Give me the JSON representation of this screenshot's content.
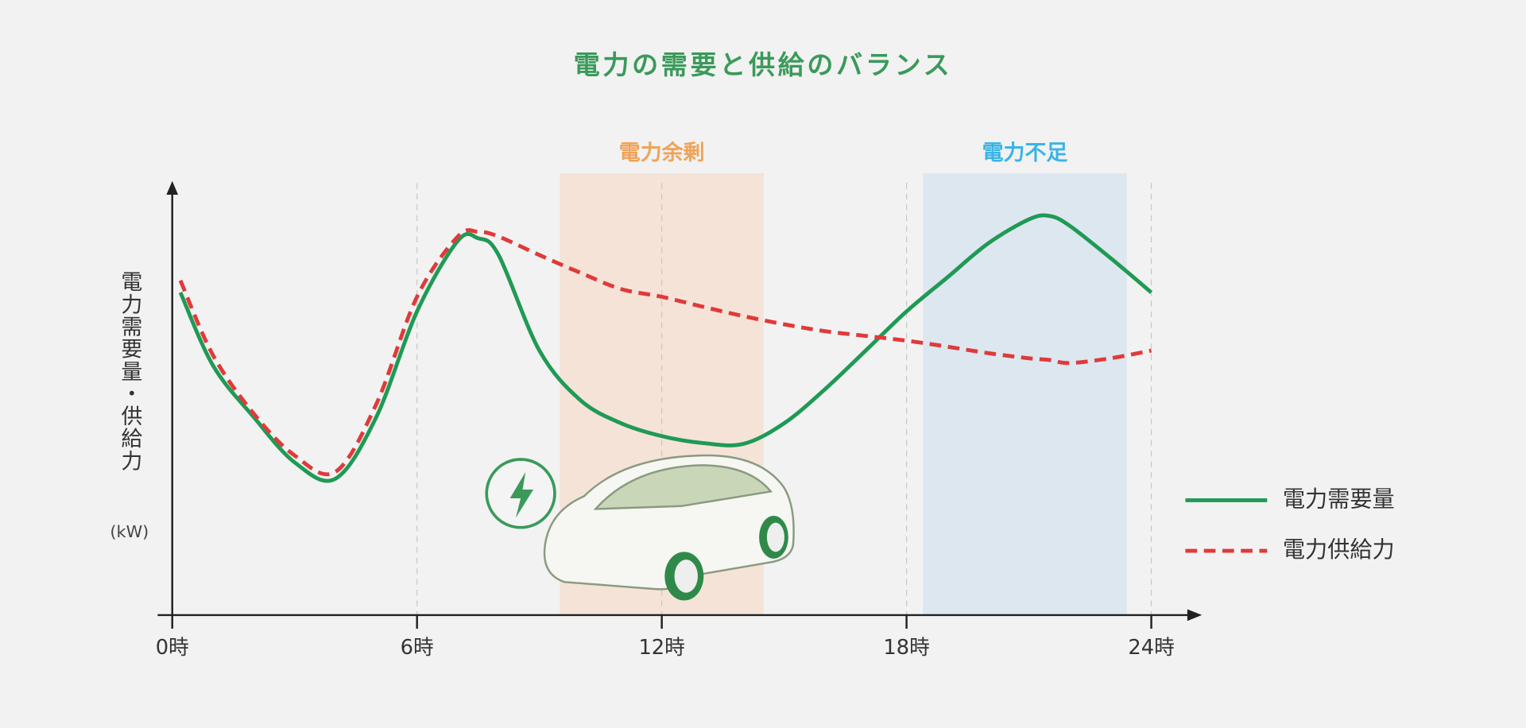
{
  "chart_data": {
    "type": "line",
    "title": "電力の需要と供給のバランス",
    "y_label": "電力需要量・供給力",
    "y_unit": "(kW)",
    "x": [
      0.2,
      1,
      2,
      3,
      4,
      5,
      6,
      7,
      7.5,
      8,
      9,
      10,
      11,
      12,
      13,
      14,
      15,
      16,
      17,
      18,
      19,
      20,
      21,
      21.5,
      22,
      23,
      24
    ],
    "series": [
      {
        "name": "電力需要量",
        "color": "#1f9a55",
        "dash": false,
        "values": [
          75,
          58,
          46,
          35.5,
          31.7,
          46,
          70.6,
          87,
          87.6,
          83.7,
          61.5,
          50,
          44.6,
          41.6,
          40,
          39.8,
          44.6,
          52.5,
          61.5,
          70.6,
          78.5,
          86.4,
          92,
          92.8,
          90.5,
          83,
          75
        ]
      },
      {
        "name": "電力供給力",
        "color": "#e03a3a",
        "dash": true,
        "values": [
          77.8,
          60.4,
          46.8,
          37.1,
          33.3,
          49,
          74,
          88,
          89.1,
          88,
          83.7,
          79.6,
          75.8,
          74,
          71.7,
          69.5,
          67.6,
          66,
          64.9,
          63.8,
          62.4,
          60.9,
          59.7,
          59.3,
          58.6,
          59.7,
          61.5
        ]
      }
    ],
    "xlim": [
      0,
      25
    ],
    "ylim": [
      0,
      100
    ],
    "xticks": [
      {
        "value": 0,
        "label": "0時"
      },
      {
        "value": 6,
        "label": "6時"
      },
      {
        "value": 12,
        "label": "12時"
      },
      {
        "value": 18,
        "label": "18時"
      },
      {
        "value": 24,
        "label": "24時"
      }
    ],
    "grid": true,
    "legend": "right",
    "annotations": [
      {
        "text": "電力余剰",
        "x0": 9.5,
        "x1": 14.5,
        "color": "#f0a35a",
        "fill": "#f5e3d8"
      },
      {
        "text": "電力不足",
        "x0": 18.4,
        "x1": 23.4,
        "color": "#3ab4e6",
        "fill": "#dde7f0"
      }
    ]
  }
}
